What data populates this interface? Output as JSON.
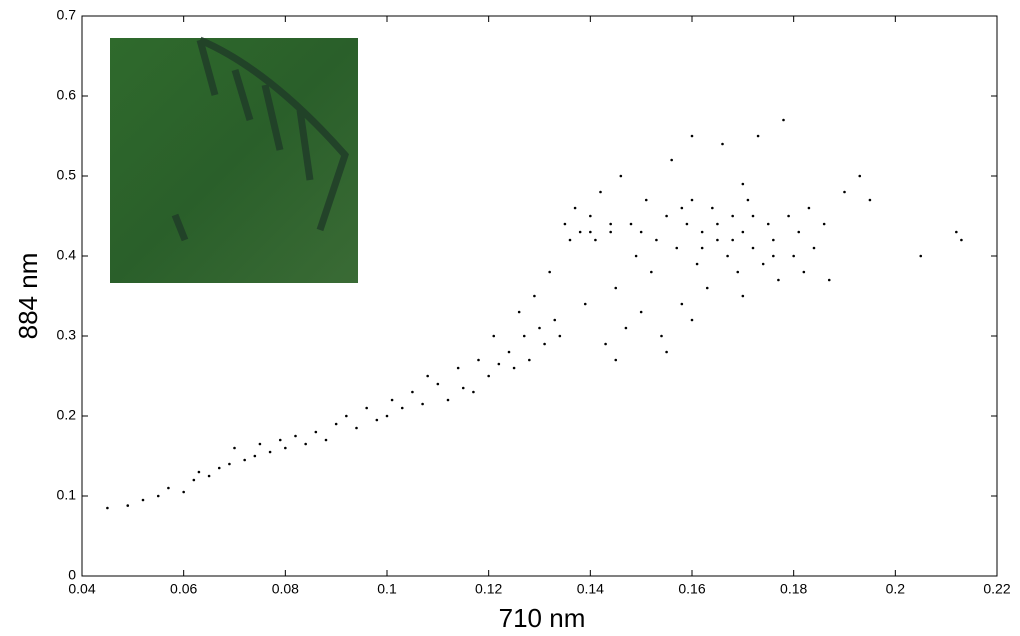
{
  "chart_data": {
    "type": "scatter",
    "x_label": "710 nm",
    "y_label": "884 nm",
    "xlim": [
      0.04,
      0.22
    ],
    "xticks": [
      0.04,
      0.06,
      0.08,
      0.1,
      0.12,
      0.14,
      0.16,
      0.18,
      0.2,
      0.22
    ],
    "ylim": [
      0,
      0.7
    ],
    "yticks": [
      0,
      0.1,
      0.2,
      0.3,
      0.4,
      0.5,
      0.6,
      0.7
    ],
    "color": "#000000",
    "x": [
      0.045,
      0.049,
      0.052,
      0.055,
      0.057,
      0.06,
      0.062,
      0.063,
      0.065,
      0.067,
      0.069,
      0.07,
      0.072,
      0.074,
      0.075,
      0.077,
      0.079,
      0.08,
      0.082,
      0.084,
      0.086,
      0.088,
      0.09,
      0.092,
      0.094,
      0.096,
      0.098,
      0.1,
      0.101,
      0.103,
      0.105,
      0.107,
      0.108,
      0.11,
      0.112,
      0.114,
      0.115,
      0.117,
      0.118,
      0.12,
      0.121,
      0.122,
      0.124,
      0.125,
      0.126,
      0.127,
      0.128,
      0.129,
      0.13,
      0.131,
      0.132,
      0.133,
      0.134,
      0.135,
      0.136,
      0.137,
      0.138,
      0.139,
      0.14,
      0.141,
      0.142,
      0.143,
      0.144,
      0.145,
      0.146,
      0.147,
      0.148,
      0.149,
      0.15,
      0.151,
      0.152,
      0.153,
      0.154,
      0.155,
      0.156,
      0.157,
      0.158,
      0.159,
      0.16,
      0.161,
      0.162,
      0.163,
      0.164,
      0.165,
      0.166,
      0.167,
      0.168,
      0.169,
      0.17,
      0.171,
      0.172,
      0.173,
      0.174,
      0.175,
      0.176,
      0.177,
      0.178,
      0.179,
      0.18,
      0.181,
      0.182,
      0.183,
      0.184,
      0.186,
      0.187,
      0.19,
      0.193,
      0.195,
      0.205,
      0.212,
      0.213,
      0.155,
      0.145,
      0.16,
      0.17,
      0.165,
      0.158,
      0.15,
      0.162,
      0.172,
      0.176,
      0.168,
      0.14,
      0.144,
      0.16,
      0.17
    ],
    "y": [
      0.085,
      0.088,
      0.095,
      0.1,
      0.11,
      0.105,
      0.12,
      0.13,
      0.125,
      0.135,
      0.14,
      0.16,
      0.145,
      0.15,
      0.165,
      0.155,
      0.17,
      0.16,
      0.175,
      0.165,
      0.18,
      0.17,
      0.19,
      0.2,
      0.185,
      0.21,
      0.195,
      0.2,
      0.22,
      0.21,
      0.23,
      0.215,
      0.25,
      0.24,
      0.22,
      0.26,
      0.235,
      0.23,
      0.27,
      0.25,
      0.3,
      0.265,
      0.28,
      0.26,
      0.33,
      0.3,
      0.27,
      0.35,
      0.31,
      0.29,
      0.38,
      0.32,
      0.3,
      0.44,
      0.42,
      0.46,
      0.43,
      0.34,
      0.45,
      0.42,
      0.48,
      0.29,
      0.43,
      0.36,
      0.5,
      0.31,
      0.44,
      0.4,
      0.33,
      0.47,
      0.38,
      0.42,
      0.3,
      0.45,
      0.52,
      0.41,
      0.34,
      0.44,
      0.47,
      0.39,
      0.43,
      0.36,
      0.46,
      0.42,
      0.54,
      0.4,
      0.45,
      0.38,
      0.43,
      0.47,
      0.41,
      0.55,
      0.39,
      0.44,
      0.42,
      0.37,
      0.57,
      0.45,
      0.4,
      0.43,
      0.38,
      0.46,
      0.41,
      0.44,
      0.37,
      0.48,
      0.5,
      0.47,
      0.4,
      0.43,
      0.42,
      0.28,
      0.27,
      0.32,
      0.35,
      0.44,
      0.46,
      0.43,
      0.41,
      0.45,
      0.4,
      0.42,
      0.43,
      0.44,
      0.55,
      0.49
    ]
  }
}
